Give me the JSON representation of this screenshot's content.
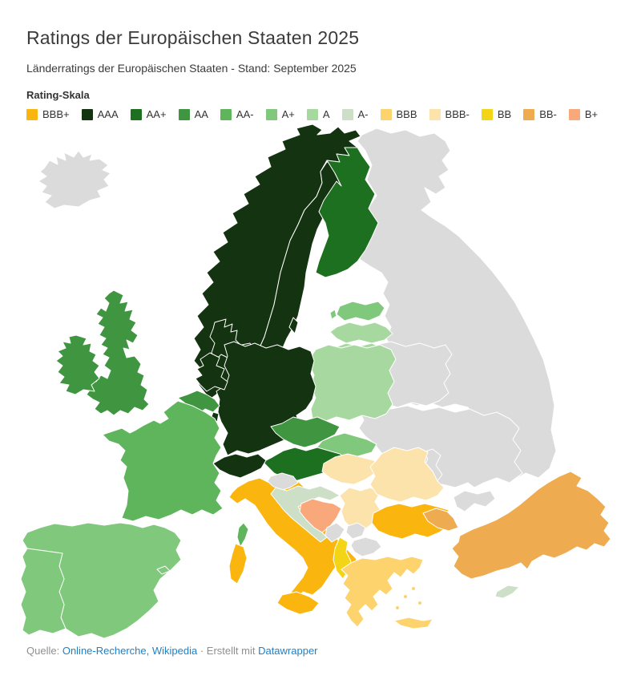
{
  "header": {
    "title": "Ratings der Europäischen Staaten 2025",
    "subtitle": "Länderratings der Europäischen Staaten - Stand: September 2025"
  },
  "legend": {
    "title": "Rating-Skala",
    "no_data_color": "#DBDBDB",
    "border_color": "#FFFFFF",
    "items": [
      {
        "label": "BBB+",
        "color": "#FBB50F"
      },
      {
        "label": "AAA",
        "color": "#143310"
      },
      {
        "label": "AA+",
        "color": "#1C701F"
      },
      {
        "label": "AA",
        "color": "#3F9540"
      },
      {
        "label": "AA-",
        "color": "#5EB55C"
      },
      {
        "label": "A+",
        "color": "#7FC87C"
      },
      {
        "label": "A",
        "color": "#A7D89F"
      },
      {
        "label": "A-",
        "color": "#CDDFC7"
      },
      {
        "label": "BBB",
        "color": "#FCD36C"
      },
      {
        "label": "BBB-",
        "color": "#FCE3AC"
      },
      {
        "label": "BB",
        "color": "#F3D515"
      },
      {
        "label": "BB-",
        "color": "#EFAB4F"
      },
      {
        "label": "B+",
        "color": "#F9A87B"
      }
    ]
  },
  "map": {
    "countries": [
      {
        "id": "is",
        "name": "Island",
        "rating": null
      },
      {
        "id": "ru",
        "name": "Russland",
        "rating": null
      },
      {
        "id": "by",
        "name": "Belarus",
        "rating": null
      },
      {
        "id": "ua",
        "name": "Ukraine",
        "rating": null
      },
      {
        "id": "md",
        "name": "Moldau",
        "rating": null
      },
      {
        "id": "si",
        "name": "Slowenien",
        "rating": null
      },
      {
        "id": "me",
        "name": "Montenegro",
        "rating": null
      },
      {
        "id": "xk",
        "name": "Kosovo",
        "rating": null
      },
      {
        "id": "mk",
        "name": "Nordmazedonien",
        "rating": null
      },
      {
        "id": "no",
        "name": "Norwegen",
        "rating": "AAA"
      },
      {
        "id": "se",
        "name": "Schweden",
        "rating": "AAA"
      },
      {
        "id": "dk",
        "name": "Dänemark",
        "rating": "AAA"
      },
      {
        "id": "de",
        "name": "Deutschland",
        "rating": "AAA"
      },
      {
        "id": "nl",
        "name": "Niederlande",
        "rating": "AAA"
      },
      {
        "id": "ch",
        "name": "Schweiz",
        "rating": "AAA"
      },
      {
        "id": "lu",
        "name": "Luxemburg",
        "rating": "AAA"
      },
      {
        "id": "fi",
        "name": "Finnland",
        "rating": "AA+"
      },
      {
        "id": "at",
        "name": "Österreich",
        "rating": "AA+"
      },
      {
        "id": "gb",
        "name": "Vereinigtes Königreich",
        "rating": "AA"
      },
      {
        "id": "ie",
        "name": "Irland",
        "rating": "AA"
      },
      {
        "id": "be",
        "name": "Belgien",
        "rating": "AA"
      },
      {
        "id": "cz",
        "name": "Tschechien",
        "rating": "AA"
      },
      {
        "id": "fr",
        "name": "Frankreich",
        "rating": "AA-"
      },
      {
        "id": "sk",
        "name": "Slowakei",
        "rating": "A+"
      },
      {
        "id": "es",
        "name": "Spanien",
        "rating": "A+"
      },
      {
        "id": "pt",
        "name": "Portugal",
        "rating": "A+"
      },
      {
        "id": "ee",
        "name": "Estland",
        "rating": "A+"
      },
      {
        "id": "lv",
        "name": "Lettland",
        "rating": "A"
      },
      {
        "id": "lt",
        "name": "Litauen",
        "rating": "A"
      },
      {
        "id": "pl",
        "name": "Polen",
        "rating": "A"
      },
      {
        "id": "hr",
        "name": "Kroatien",
        "rating": "A-"
      },
      {
        "id": "cy",
        "name": "Zypern",
        "rating": "A-"
      },
      {
        "id": "it",
        "name": "Italien",
        "rating": "BBB+"
      },
      {
        "id": "bg",
        "name": "Bulgarien",
        "rating": "BBB+"
      },
      {
        "id": "gr",
        "name": "Griechenland",
        "rating": "BBB"
      },
      {
        "id": "hu",
        "name": "Ungarn",
        "rating": "BBB-"
      },
      {
        "id": "ro",
        "name": "Rumänien",
        "rating": "BBB-"
      },
      {
        "id": "rs",
        "name": "Serbien",
        "rating": "BBB-"
      },
      {
        "id": "al",
        "name": "Albanien",
        "rating": "BB"
      },
      {
        "id": "tr",
        "name": "Türkei",
        "rating": "BB-"
      },
      {
        "id": "ba",
        "name": "Bosnien und Herzegowina",
        "rating": "B+"
      }
    ]
  },
  "footer": {
    "source_label": "Quelle:",
    "source_links": "Online-Recherche, Wikipedia",
    "separator": "·",
    "made_with": "Erstellt mit",
    "tool_link": "Datawrapper",
    "link_color": "#1D81C9",
    "text_color": "#8F8F8F"
  }
}
